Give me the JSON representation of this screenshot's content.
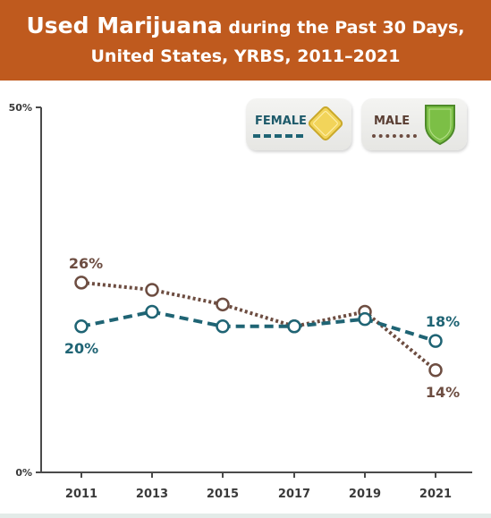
{
  "header": {
    "title_strong": "Used Marijuana",
    "title_rest": "during the Past 30 Days,",
    "subtitle": "United States, YRBS, 2011–2021"
  },
  "legend": {
    "female_label": "FEMALE",
    "male_label": "MALE",
    "female_icon": "yellow-diamond-sign-icon",
    "male_icon": "green-shield-sign-icon"
  },
  "chart_data": {
    "type": "line",
    "title": "Used Marijuana during the Past 30 Days, United States, YRBS, 2011–2021",
    "x": [
      "2011",
      "2013",
      "2015",
      "2017",
      "2019",
      "2021"
    ],
    "yticks": [
      "0%",
      "50%"
    ],
    "ylim": [
      0,
      50
    ],
    "grid": false,
    "legend_position": "top-right",
    "series": [
      {
        "name": "FEMALE",
        "color": "#1f6474",
        "style": "dashed",
        "values": [
          20,
          22,
          20,
          20,
          21,
          18
        ],
        "labels": {
          "0": "20%",
          "5": "18%"
        }
      },
      {
        "name": "MALE",
        "color": "#6d4d41",
        "style": "dotted",
        "values": [
          26,
          25,
          23,
          20,
          22,
          14
        ],
        "labels": {
          "0": "26%",
          "5": "14%"
        }
      }
    ]
  }
}
